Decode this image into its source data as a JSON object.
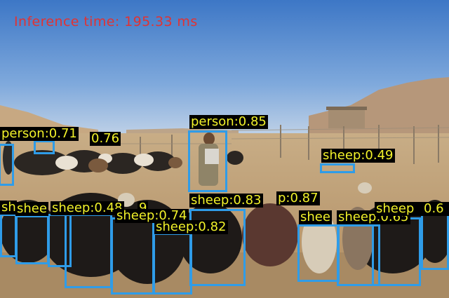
{
  "inference_text": "Inference time: 195.33 ms",
  "colors": {
    "box": "#2f9ce8",
    "label_bg": "#000000",
    "label_text": "#f2f22a",
    "inference_text": "#e23232"
  },
  "detections": [
    {
      "label": "person:0.71"
    },
    {
      "label": "0.76"
    },
    {
      "label": "person:0.85"
    },
    {
      "label": "sheep:0.49"
    },
    {
      "label": "sh"
    },
    {
      "label": "shee"
    },
    {
      "label": "sheep:0.48"
    },
    {
      "label": "9"
    },
    {
      "label": "sheep:0.74"
    },
    {
      "label": "sheep:0.82"
    },
    {
      "label": "sheep:0.83"
    },
    {
      "label": "p:0.87"
    },
    {
      "label": "shee"
    },
    {
      "label": "sheep:0.65"
    },
    {
      "label": "sheep"
    },
    {
      "label": "0.6"
    }
  ]
}
